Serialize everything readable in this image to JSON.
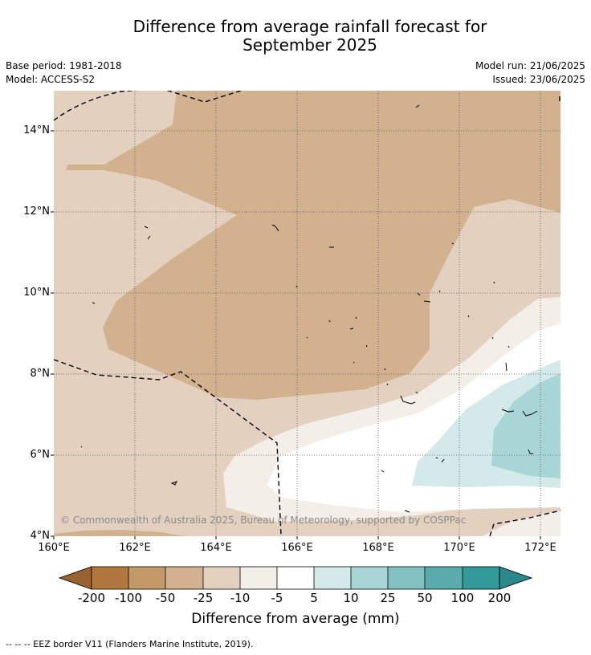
{
  "title_line1": "Difference from average rainfall forecast for",
  "title_line2": "September 2025",
  "base_period": "Base period: 1981-2018",
  "model": "Model: ACCESS-S2",
  "model_run": "Model run: 21/06/2025",
  "issued": "Issued: 23/06/2025",
  "copyright": "© Commonwealth of Australia 2025, Bureau of Meteorology, supported by COSPPac",
  "y_ticks": [
    "14°N",
    "12°N",
    "10°N",
    "8°N",
    "6°N",
    "4°N"
  ],
  "x_ticks": [
    "160°E",
    "162°E",
    "164°E",
    "166°E",
    "168°E",
    "170°E",
    "172°E"
  ],
  "colorbar": {
    "title": "Difference from average (mm)",
    "labels": [
      "-200",
      "-100",
      "-50",
      "-25",
      "-10",
      "-5",
      "5",
      "10",
      "25",
      "50",
      "100",
      "200"
    ],
    "colors": [
      "#9a6230",
      "#b0773f",
      "#c49968",
      "#d2b18f",
      "#e3d0bf",
      "#f3eee8",
      "#ffffff",
      "#d4eaea",
      "#a8d5d5",
      "#82c2c2",
      "#5aacac",
      "#339999",
      "#2a8a8a"
    ]
  },
  "footnote": "--  --  -- EEZ border V11 (Flanders Marine Institute, 2019)."
}
